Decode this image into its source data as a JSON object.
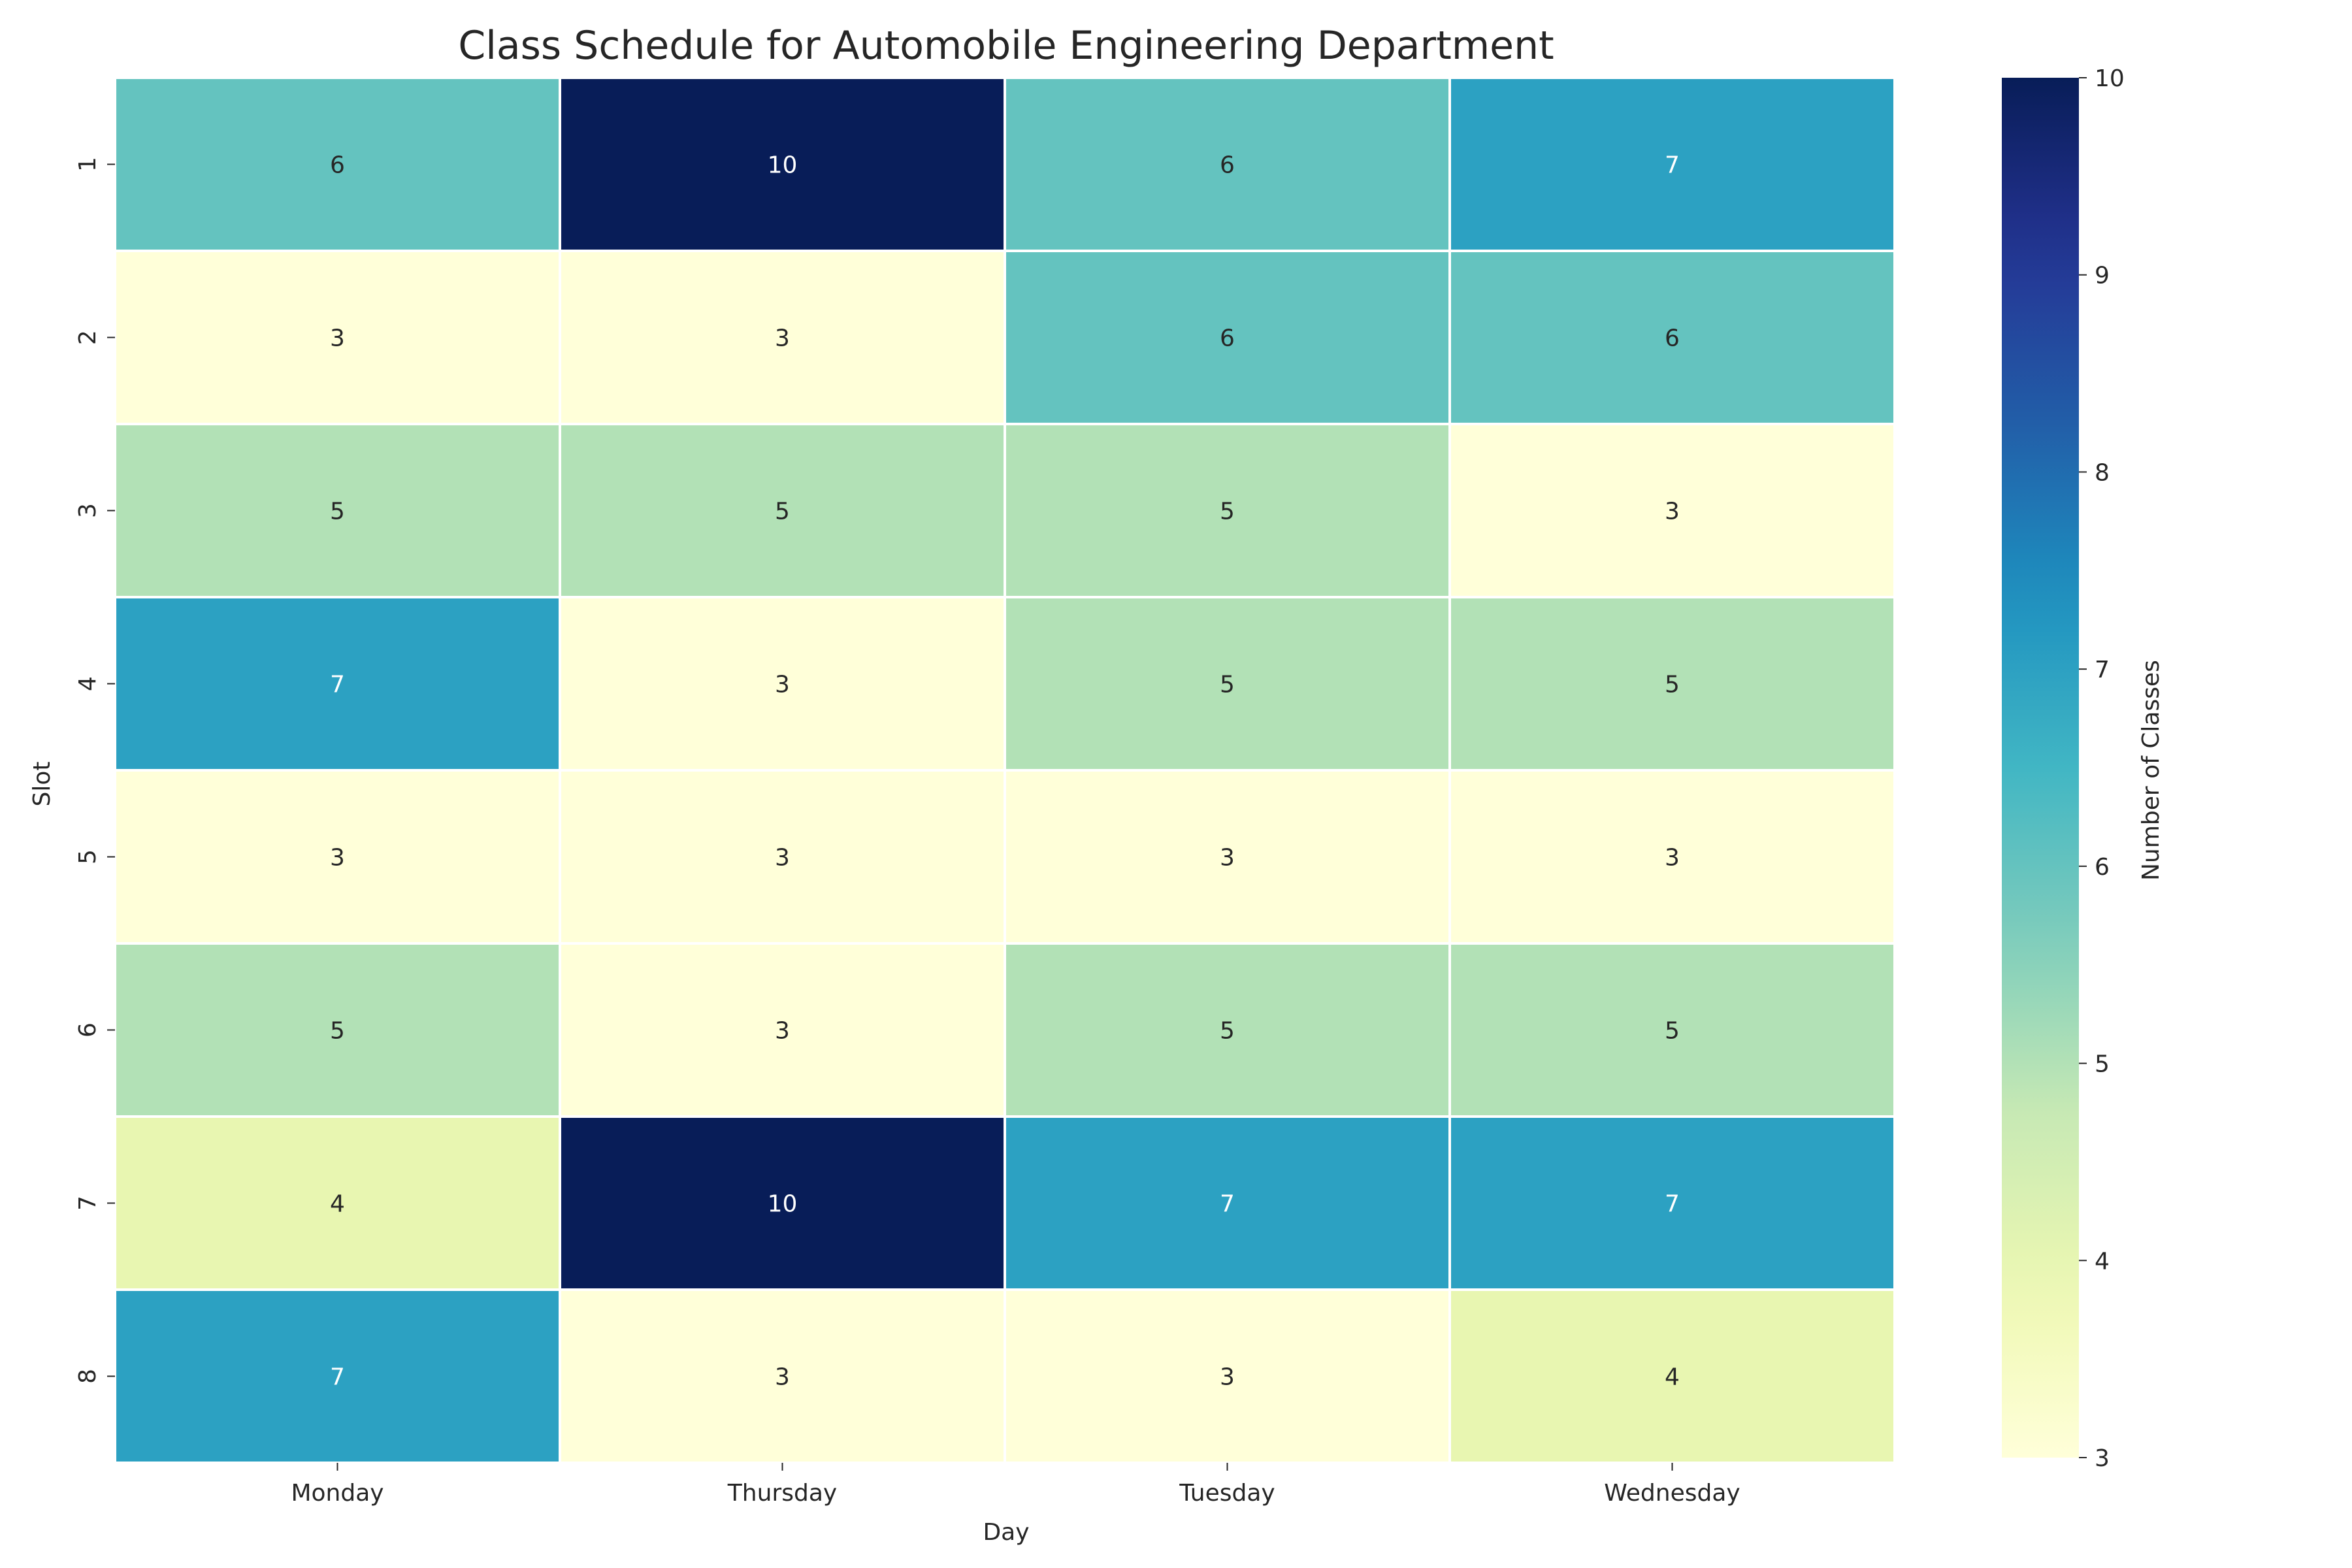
{
  "chart_data": {
    "type": "heatmap",
    "title": "Class Schedule for Automobile Engineering Department",
    "xlabel": "Day",
    "ylabel": "Slot",
    "x_categories": [
      "Monday",
      "Thursday",
      "Tuesday",
      "Wednesday"
    ],
    "y_categories": [
      "1",
      "2",
      "3",
      "4",
      "5",
      "6",
      "7",
      "8"
    ],
    "values": [
      [
        6,
        10,
        6,
        7
      ],
      [
        3,
        3,
        6,
        6
      ],
      [
        5,
        5,
        5,
        3
      ],
      [
        7,
        3,
        5,
        5
      ],
      [
        3,
        3,
        3,
        3
      ],
      [
        5,
        3,
        5,
        5
      ],
      [
        4,
        10,
        7,
        7
      ],
      [
        7,
        3,
        3,
        4
      ]
    ],
    "annotations": true,
    "colormap": "YlGnBu",
    "colorbar": {
      "label": "Number of Classes",
      "range": [
        3,
        10
      ],
      "ticks": [
        "3",
        "4",
        "5",
        "6",
        "7",
        "8",
        "9",
        "10"
      ]
    },
    "cell_border_color": "#ffffff"
  }
}
